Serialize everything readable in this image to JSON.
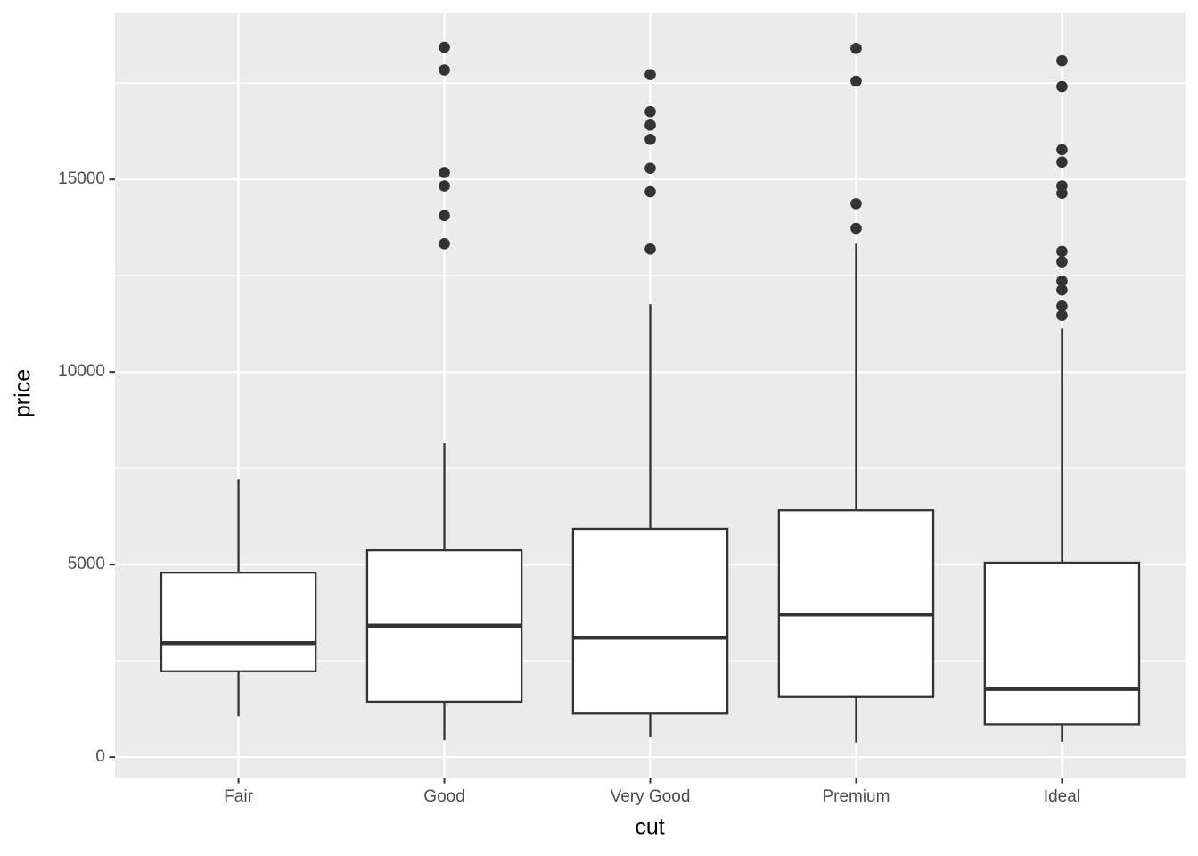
{
  "chart_data": {
    "type": "boxplot",
    "title": "",
    "xlabel": "cut",
    "ylabel": "price",
    "categories": [
      "Fair",
      "Good",
      "Very Good",
      "Premium",
      "Ideal"
    ],
    "y_tick_labels": [
      "0",
      "5000",
      "10000",
      "15000"
    ],
    "y_ticks": [
      0,
      5000,
      10000,
      15000
    ],
    "y_minor_ticks": [
      2500,
      7500,
      12500,
      17500
    ],
    "ylim": [
      -530,
      19310
    ],
    "legend": "none",
    "grid": "on",
    "series": [
      {
        "category": "Fair",
        "whisker_low": 1060,
        "q1": 2230,
        "median": 2960,
        "q3": 4790,
        "whisker_high": 7220,
        "outliers": []
      },
      {
        "category": "Good",
        "whisker_low": 440,
        "q1": 1440,
        "median": 3410,
        "q3": 5370,
        "whisker_high": 8150,
        "outliers": [
          13330,
          14060,
          14830,
          15180,
          17840,
          18430
        ]
      },
      {
        "category": "Very Good",
        "whisker_low": 520,
        "q1": 1130,
        "median": 3100,
        "q3": 5930,
        "whisker_high": 11760,
        "outliers": [
          13190,
          14680,
          15290,
          16040,
          16410,
          16760,
          17720
        ]
      },
      {
        "category": "Premium",
        "whisker_low": 380,
        "q1": 1560,
        "median": 3700,
        "q3": 6410,
        "whisker_high": 13330,
        "outliers": [
          13730,
          14370,
          17550,
          18400
        ]
      },
      {
        "category": "Ideal",
        "whisker_low": 400,
        "q1": 850,
        "median": 1770,
        "q3": 5050,
        "whisker_high": 11130,
        "outliers": [
          11470,
          11710,
          12130,
          12360,
          12860,
          13130,
          14640,
          14830,
          15450,
          15770,
          17410,
          18080
        ]
      }
    ],
    "style": {
      "panel_bg": "#EBEBEB",
      "grid_color": "#FFFFFF",
      "box_fill": "#FFFFFF",
      "stroke_color": "#333333",
      "tick_label_color": "#4D4D4D",
      "axis_title_color": "#000000"
    }
  }
}
